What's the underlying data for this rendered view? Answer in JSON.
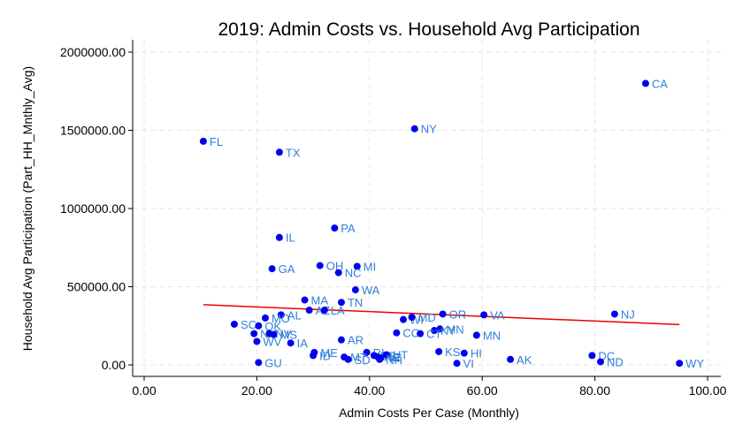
{
  "chart_data": {
    "type": "scatter",
    "title": "2019: Admin Costs vs. Household Avg Participation",
    "xlabel": "Admin Costs Per Case (Monthly)",
    "ylabel": "Household Avg Participation (Part_HH_Mnthly_Avg)",
    "xlim": [
      0,
      100
    ],
    "ylim": [
      0,
      2000000
    ],
    "xticks": [
      0,
      20,
      40,
      60,
      80,
      100
    ],
    "xtick_labels": [
      "0.00",
      "20.00",
      "40.00",
      "60.00",
      "80.00",
      "100.00"
    ],
    "yticks": [
      0,
      500000,
      1000000,
      1500000,
      2000000
    ],
    "ytick_labels": [
      "0.00",
      "500000.00",
      "1000000.00",
      "1500000.00",
      "2000000.00"
    ],
    "grid": true,
    "colors": {
      "points": "#0000ee",
      "labels": "#2f7fd8",
      "fit_line": "#ee0000"
    },
    "fit_line": {
      "x": [
        10.5,
        95
      ],
      "y": [
        385000,
        258000
      ]
    },
    "points": [
      {
        "label": "CA",
        "x": 89.0,
        "y": 1800000
      },
      {
        "label": "NY",
        "x": 48.0,
        "y": 1510000
      },
      {
        "label": "FL",
        "x": 10.5,
        "y": 1430000
      },
      {
        "label": "TX",
        "x": 24.0,
        "y": 1360000
      },
      {
        "label": "PA",
        "x": 33.8,
        "y": 875000
      },
      {
        "label": "IL",
        "x": 24.0,
        "y": 815000
      },
      {
        "label": "OH",
        "x": 31.2,
        "y": 635000
      },
      {
        "label": "MI",
        "x": 37.8,
        "y": 630000
      },
      {
        "label": "GA",
        "x": 22.7,
        "y": 615000
      },
      {
        "label": "NC",
        "x": 34.5,
        "y": 590000
      },
      {
        "label": "WA",
        "x": 37.5,
        "y": 480000
      },
      {
        "label": "MA",
        "x": 28.5,
        "y": 415000
      },
      {
        "label": "TN",
        "x": 35.0,
        "y": 400000
      },
      {
        "label": "AZ",
        "x": 29.3,
        "y": 350000
      },
      {
        "label": "LA",
        "x": 32.0,
        "y": 350000
      },
      {
        "label": "OR",
        "x": 53.0,
        "y": 325000
      },
      {
        "label": "VA",
        "x": 60.3,
        "y": 320000
      },
      {
        "label": "NJ",
        "x": 83.5,
        "y": 325000
      },
      {
        "label": "AL",
        "x": 24.3,
        "y": 320000
      },
      {
        "label": "MO",
        "x": 21.5,
        "y": 300000
      },
      {
        "label": "WI",
        "x": 46.0,
        "y": 290000
      },
      {
        "label": "MD",
        "x": 47.5,
        "y": 305000
      },
      {
        "label": "SC",
        "x": 16.0,
        "y": 260000
      },
      {
        "label": "OK",
        "x": 20.3,
        "y": 250000
      },
      {
        "label": "MN",
        "x": 52.5,
        "y": 230000
      },
      {
        "label": "KY",
        "x": 51.5,
        "y": 220000
      },
      {
        "label": "CO",
        "x": 44.8,
        "y": 205000
      },
      {
        "label": "CT",
        "x": 49.0,
        "y": 200000
      },
      {
        "label": "MN",
        "x": 59.0,
        "y": 190000
      },
      {
        "label": "NM",
        "x": 19.5,
        "y": 200000
      },
      {
        "label": "NV",
        "x": 22.2,
        "y": 200000
      },
      {
        "label": "MS",
        "x": 23.0,
        "y": 195000
      },
      {
        "label": "WV",
        "x": 20.0,
        "y": 150000
      },
      {
        "label": "IA",
        "x": 26.0,
        "y": 140000
      },
      {
        "label": "AR",
        "x": 35.0,
        "y": 160000
      },
      {
        "label": "KS",
        "x": 52.3,
        "y": 85000
      },
      {
        "label": "HI",
        "x": 56.8,
        "y": 75000
      },
      {
        "label": "ME",
        "x": 30.2,
        "y": 80000
      },
      {
        "label": "ID",
        "x": 30.0,
        "y": 60000
      },
      {
        "label": "RI",
        "x": 39.5,
        "y": 80000
      },
      {
        "label": "DE",
        "x": 40.8,
        "y": 60000
      },
      {
        "label": "NE",
        "x": 41.5,
        "y": 50000
      },
      {
        "label": "UT",
        "x": 43.0,
        "y": 65000
      },
      {
        "label": "VT",
        "x": 42.0,
        "y": 45000
      },
      {
        "label": "NH",
        "x": 41.8,
        "y": 35000
      },
      {
        "label": "MT",
        "x": 35.5,
        "y": 50000
      },
      {
        "label": "SD",
        "x": 36.2,
        "y": 35000
      },
      {
        "label": "DC",
        "x": 79.5,
        "y": 60000
      },
      {
        "label": "ND",
        "x": 81.0,
        "y": 20000
      },
      {
        "label": "AK",
        "x": 65.0,
        "y": 35000
      },
      {
        "label": "VI",
        "x": 55.5,
        "y": 10000
      },
      {
        "label": "GU",
        "x": 20.3,
        "y": 15000
      },
      {
        "label": "WY",
        "x": 95.0,
        "y": 10000
      }
    ]
  }
}
